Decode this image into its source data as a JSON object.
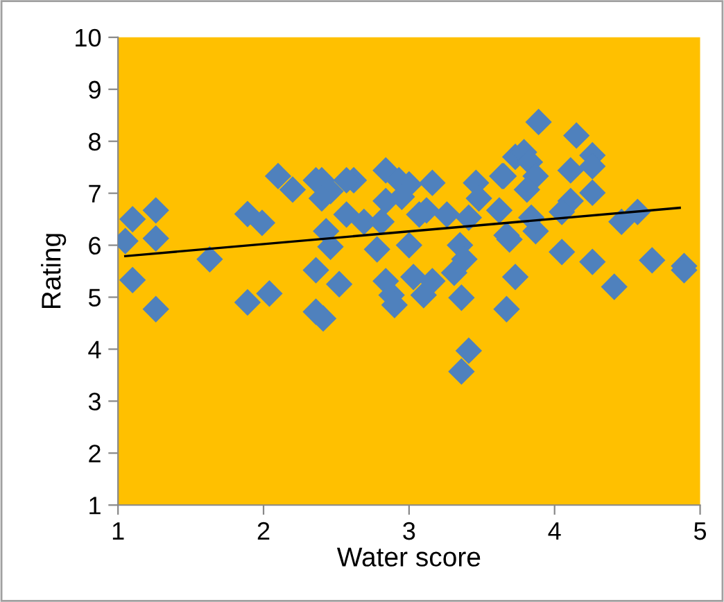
{
  "chart_data": {
    "type": "scatter",
    "xlabel": "Water score",
    "ylabel": "Rating",
    "xlim": [
      1,
      5
    ],
    "ylim": [
      1,
      10
    ],
    "xticks": [
      1,
      2,
      3,
      4,
      5
    ],
    "yticks": [
      1,
      2,
      3,
      4,
      5,
      6,
      7,
      8,
      9,
      10
    ],
    "grid": false,
    "legend": false,
    "series": [
      {
        "color": "#4f81bd",
        "marker": "diamond",
        "x": [
          1.05,
          1.1,
          1.26,
          1.26,
          1.1,
          1.26,
          1.63,
          1.89,
          1.99,
          1.89,
          2.04,
          2.1,
          2.2,
          2.36,
          2.4,
          2.46,
          2.62,
          2.57,
          2.84,
          2.93,
          3.0,
          3.16,
          3.46,
          3.64,
          3.73,
          2.4,
          2.43,
          2.46,
          2.57,
          2.69,
          2.81,
          2.84,
          2.95,
          3.07,
          3.12,
          3.26,
          3.41,
          3.48,
          3.62,
          3.67,
          2.78,
          3.0,
          3.35,
          3.38,
          3.31,
          2.36,
          2.52,
          2.84,
          3.03,
          3.16,
          3.73,
          2.88,
          2.9,
          3.1,
          3.36,
          2.36,
          2.41,
          3.67,
          3.41,
          3.36,
          3.89,
          4.15,
          4.26,
          3.79,
          3.83,
          3.87,
          4.11,
          4.26,
          4.26,
          3.65,
          3.81,
          4.11,
          4.05,
          3.84,
          3.87,
          4.46,
          4.57,
          3.69,
          4.05,
          4.26,
          4.67,
          4.89,
          4.89,
          4.41
        ],
        "values": [
          6.08,
          6.5,
          6.67,
          6.13,
          5.33,
          4.77,
          5.73,
          6.6,
          6.43,
          4.9,
          5.07,
          7.33,
          7.07,
          7.25,
          7.25,
          7.04,
          7.25,
          7.25,
          7.44,
          7.25,
          7.17,
          7.2,
          7.2,
          7.33,
          7.7,
          6.9,
          6.27,
          5.97,
          6.59,
          6.45,
          6.45,
          6.85,
          6.93,
          6.59,
          6.67,
          6.59,
          6.53,
          6.9,
          6.67,
          6.19,
          5.92,
          6.0,
          6.0,
          5.73,
          5.47,
          5.52,
          5.25,
          5.31,
          5.39,
          5.31,
          5.39,
          5.04,
          4.85,
          5.04,
          4.99,
          4.72,
          4.59,
          4.77,
          3.97,
          3.57,
          8.37,
          8.11,
          7.73,
          7.79,
          7.6,
          7.33,
          7.44,
          7.52,
          7.01,
          7.33,
          7.07,
          6.85,
          6.64,
          6.53,
          6.27,
          6.45,
          6.64,
          6.11,
          5.87,
          5.68,
          5.71,
          5.6,
          5.52,
          5.2
        ]
      },
      {
        "type": "line",
        "marker": "none",
        "color": "#000000",
        "x": [
          1.05,
          4.86
        ],
        "values": [
          5.79,
          6.72
        ]
      }
    ]
  }
}
